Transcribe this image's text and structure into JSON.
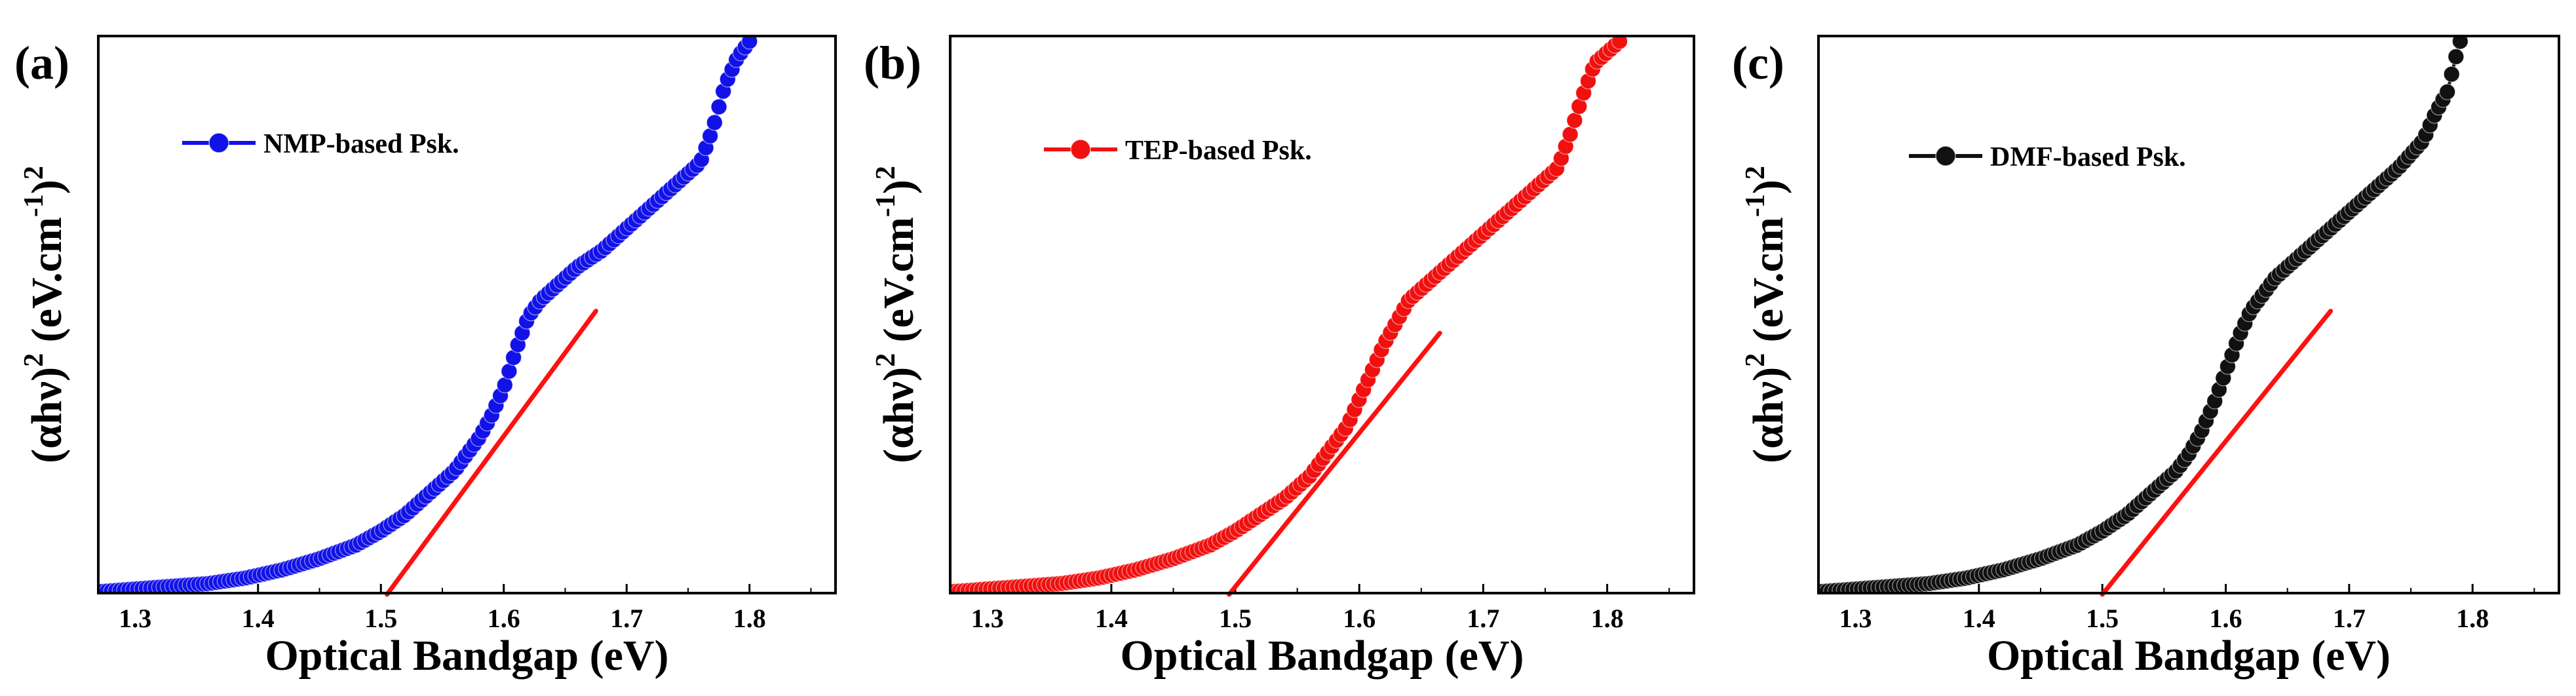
{
  "chart_data": [
    {
      "type": "scatter",
      "panel": "(a)",
      "legend": "NMP-based Psk.",
      "xlabel": "Optical Bandgap (eV)",
      "ylabel_prefix": "(αhν)",
      "ylabel_sup1": "2",
      "ylabel_mid": " (eV.cm",
      "ylabel_sup2": "-1",
      "ylabel_close": ")",
      "ylabel_sup3": "2",
      "xlim": [
        1.27,
        1.87
      ],
      "ylim": [
        0,
        1
      ],
      "xticks": [
        "1.3",
        "1.4",
        "1.5",
        "1.6",
        "1.7",
        "1.8"
      ],
      "color": "#1212e8",
      "fit_line": {
        "x": [
          1.505,
          1.675
        ],
        "y": [
          0.0,
          0.51
        ],
        "color": "#ff1010"
      },
      "data": {
        "x": [
          1.27,
          1.3,
          1.33,
          1.36,
          1.39,
          1.42,
          1.45,
          1.48,
          1.5,
          1.52,
          1.54,
          1.56,
          1.57,
          1.58,
          1.59,
          1.6,
          1.61,
          1.62,
          1.63,
          1.64,
          1.66,
          1.68,
          1.7,
          1.72,
          1.74,
          1.76,
          1.77,
          1.78,
          1.79,
          1.8
        ],
        "y": [
          0.0,
          0.005,
          0.01,
          0.015,
          0.025,
          0.04,
          0.06,
          0.085,
          0.11,
          0.14,
          0.18,
          0.22,
          0.25,
          0.28,
          0.32,
          0.37,
          0.44,
          0.5,
          0.53,
          0.55,
          0.59,
          0.62,
          0.66,
          0.7,
          0.74,
          0.78,
          0.84,
          0.92,
          0.97,
          1.0
        ]
      }
    },
    {
      "type": "scatter",
      "panel": "(b)",
      "legend": "TEP-based Psk.",
      "xlabel": "Optical Bandgap (eV)",
      "ylabel_prefix": "(αhν)",
      "ylabel_sup1": "2",
      "ylabel_mid": " (eV.cm",
      "ylabel_sup2": "-1",
      "ylabel_close": ")",
      "ylabel_sup3": "2",
      "xlim": [
        1.27,
        1.87
      ],
      "ylim": [
        0,
        1
      ],
      "xticks": [
        "1.3",
        "1.4",
        "1.5",
        "1.6",
        "1.7",
        "1.8"
      ],
      "color": "#f01010",
      "fit_line": {
        "x": [
          1.495,
          1.665
        ],
        "y": [
          0.0,
          0.47
        ],
        "color": "#ff1010"
      },
      "data": {
        "x": [
          1.27,
          1.3,
          1.33,
          1.36,
          1.39,
          1.42,
          1.45,
          1.48,
          1.5,
          1.52,
          1.54,
          1.56,
          1.57,
          1.58,
          1.59,
          1.6,
          1.61,
          1.62,
          1.63,
          1.64,
          1.66,
          1.68,
          1.7,
          1.72,
          1.74,
          1.76,
          1.77,
          1.78,
          1.79,
          1.81
        ],
        "y": [
          0.0,
          0.005,
          0.01,
          0.015,
          0.025,
          0.04,
          0.06,
          0.085,
          0.11,
          0.14,
          0.17,
          0.21,
          0.24,
          0.27,
          0.3,
          0.35,
          0.4,
          0.45,
          0.49,
          0.53,
          0.57,
          0.61,
          0.65,
          0.69,
          0.73,
          0.77,
          0.83,
          0.9,
          0.96,
          1.0
        ]
      }
    },
    {
      "type": "scatter",
      "panel": "(c)",
      "legend": "DMF-based Psk.",
      "xlabel": "Optical Bandgap (eV)",
      "ylabel_prefix": "(αhν)",
      "ylabel_sup1": "2",
      "ylabel_mid": " (eV.cm",
      "ylabel_sup2": "-1",
      "ylabel_close": ")",
      "ylabel_sup3": "2",
      "xlim": [
        1.27,
        1.87
      ],
      "ylim": [
        0,
        1
      ],
      "xticks": [
        "1.3",
        "1.4",
        "1.5",
        "1.6",
        "1.7",
        "1.8"
      ],
      "color": "#111111",
      "fit_line": {
        "x": [
          1.5,
          1.685
        ],
        "y": [
          0.0,
          0.51
        ],
        "color": "#ff1010"
      },
      "data": {
        "x": [
          1.27,
          1.3,
          1.33,
          1.36,
          1.39,
          1.42,
          1.45,
          1.48,
          1.5,
          1.52,
          1.54,
          1.56,
          1.57,
          1.58,
          1.59,
          1.6,
          1.61,
          1.62,
          1.63,
          1.64,
          1.66,
          1.68,
          1.7,
          1.72,
          1.74,
          1.76,
          1.77,
          1.78,
          1.785,
          1.79
        ],
        "y": [
          0.0,
          0.005,
          0.01,
          0.015,
          0.025,
          0.04,
          0.06,
          0.085,
          0.11,
          0.14,
          0.18,
          0.22,
          0.25,
          0.29,
          0.34,
          0.4,
          0.46,
          0.51,
          0.54,
          0.57,
          0.61,
          0.65,
          0.69,
          0.73,
          0.77,
          0.82,
          0.87,
          0.91,
          0.96,
          1.0
        ]
      }
    }
  ]
}
